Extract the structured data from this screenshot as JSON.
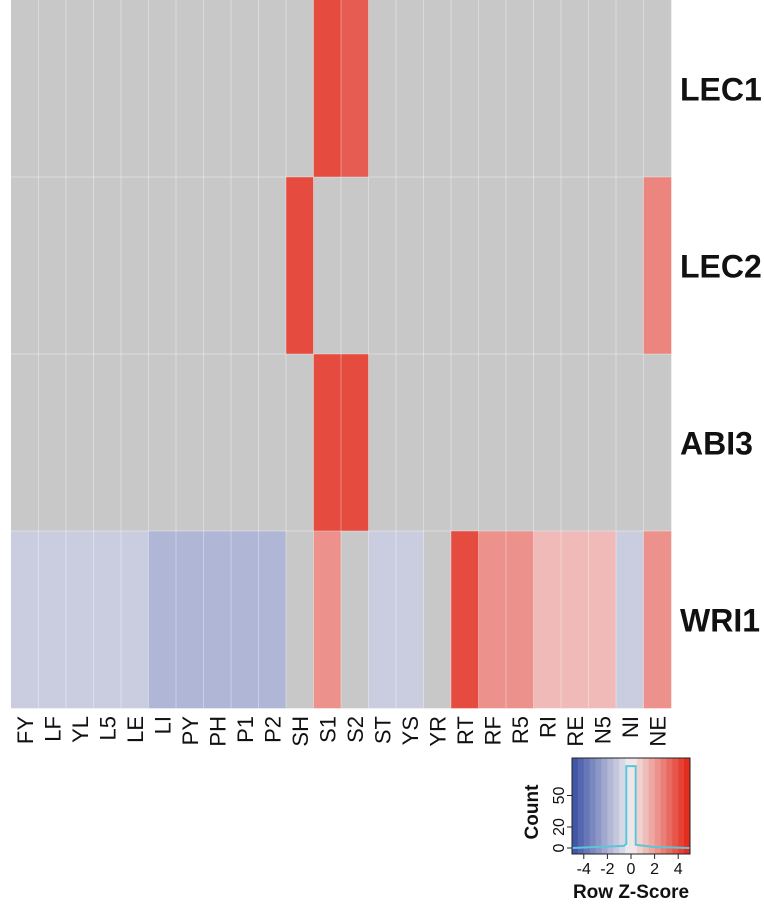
{
  "chart_data": {
    "type": "heatmap",
    "columns": [
      "FY",
      "LF",
      "YL",
      "L5",
      "LE",
      "LI",
      "PY",
      "PH",
      "P1",
      "P2",
      "SH",
      "S1",
      "S2",
      "ST",
      "YS",
      "YR",
      "RT",
      "RF",
      "R5",
      "RI",
      "RE",
      "N5",
      "NI",
      "NE"
    ],
    "rows": [
      "LEC1",
      "LEC2",
      "ABI3",
      "WRI1"
    ],
    "values": [
      [
        null,
        null,
        null,
        null,
        null,
        null,
        null,
        null,
        null,
        null,
        null,
        4.0,
        3.6,
        null,
        null,
        null,
        null,
        null,
        null,
        null,
        null,
        null,
        null,
        null
      ],
      [
        null,
        null,
        null,
        null,
        null,
        null,
        null,
        null,
        null,
        null,
        4.0,
        null,
        null,
        null,
        null,
        null,
        null,
        null,
        null,
        null,
        null,
        null,
        null,
        2.6
      ],
      [
        null,
        null,
        null,
        null,
        null,
        null,
        null,
        null,
        null,
        null,
        null,
        4.0,
        4.0,
        null,
        null,
        null,
        null,
        null,
        null,
        null,
        null,
        null,
        null,
        null
      ],
      [
        -1.1,
        -1.1,
        -1.1,
        -1.1,
        -1.1,
        -1.8,
        -1.8,
        -1.8,
        -1.8,
        -1.8,
        null,
        2.3,
        null,
        -1.1,
        -1.1,
        null,
        4.0,
        2.3,
        2.3,
        1.3,
        1.3,
        1.3,
        -1.1,
        2.3
      ]
    ],
    "na_color": "#c8c8c8",
    "color_low": "#3a4fa5",
    "color_mid": "#f3f0f0",
    "color_high": "#e32214",
    "color_range": [
      -5,
      5
    ],
    "key": {
      "title": "Count",
      "xlabel": "Row Z-Score",
      "ticks_x": [
        "-4",
        "-2",
        "0",
        "2",
        "4"
      ],
      "ticks_y": [
        "0",
        "20",
        "50"
      ]
    }
  }
}
